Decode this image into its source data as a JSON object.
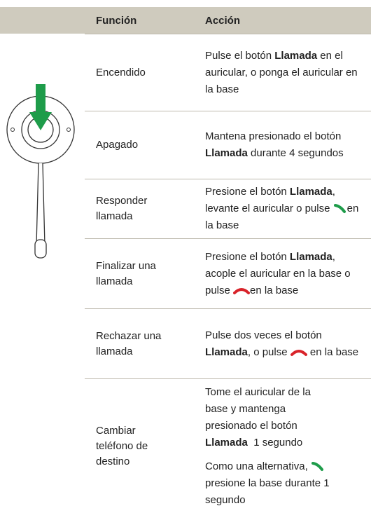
{
  "header": {
    "function": "Función",
    "action": "Acción"
  },
  "rows": [
    {
      "function": "Encendido",
      "action": [
        "Pulse el botón ",
        "Llamada",
        " en el auricular, o ponga el auricular en la base"
      ]
    },
    {
      "function": "Apagado",
      "action": [
        "Mantena presionado el botón ",
        "Llamada",
        " durante 4 segundos"
      ]
    },
    {
      "function": "Responder llamada",
      "action": [
        "Presione el botón ",
        "Llamada",
        ", levante el auricular o pulse ",
        "en la base"
      ]
    },
    {
      "function": "Finalizar una llamada",
      "action": [
        "Presione el botón ",
        "Llamada",
        ", acople el auricular en la base o pulse ",
        "en la base"
      ]
    },
    {
      "function": "Rechazar una llamada",
      "action": [
        "Pulse dos veces el botón ",
        "Llamada",
        ", o pulse ",
        " en la base"
      ]
    },
    {
      "function": "Cambiar teléfono de destino",
      "action": [
        "Tome el auricular de la base y mantenga presionado el botón ",
        "Llamada",
        "  1 segundo"
      ],
      "action2": [
        "Como una alternativa, ",
        " presione la base durante 1 segundo"
      ]
    }
  ]
}
